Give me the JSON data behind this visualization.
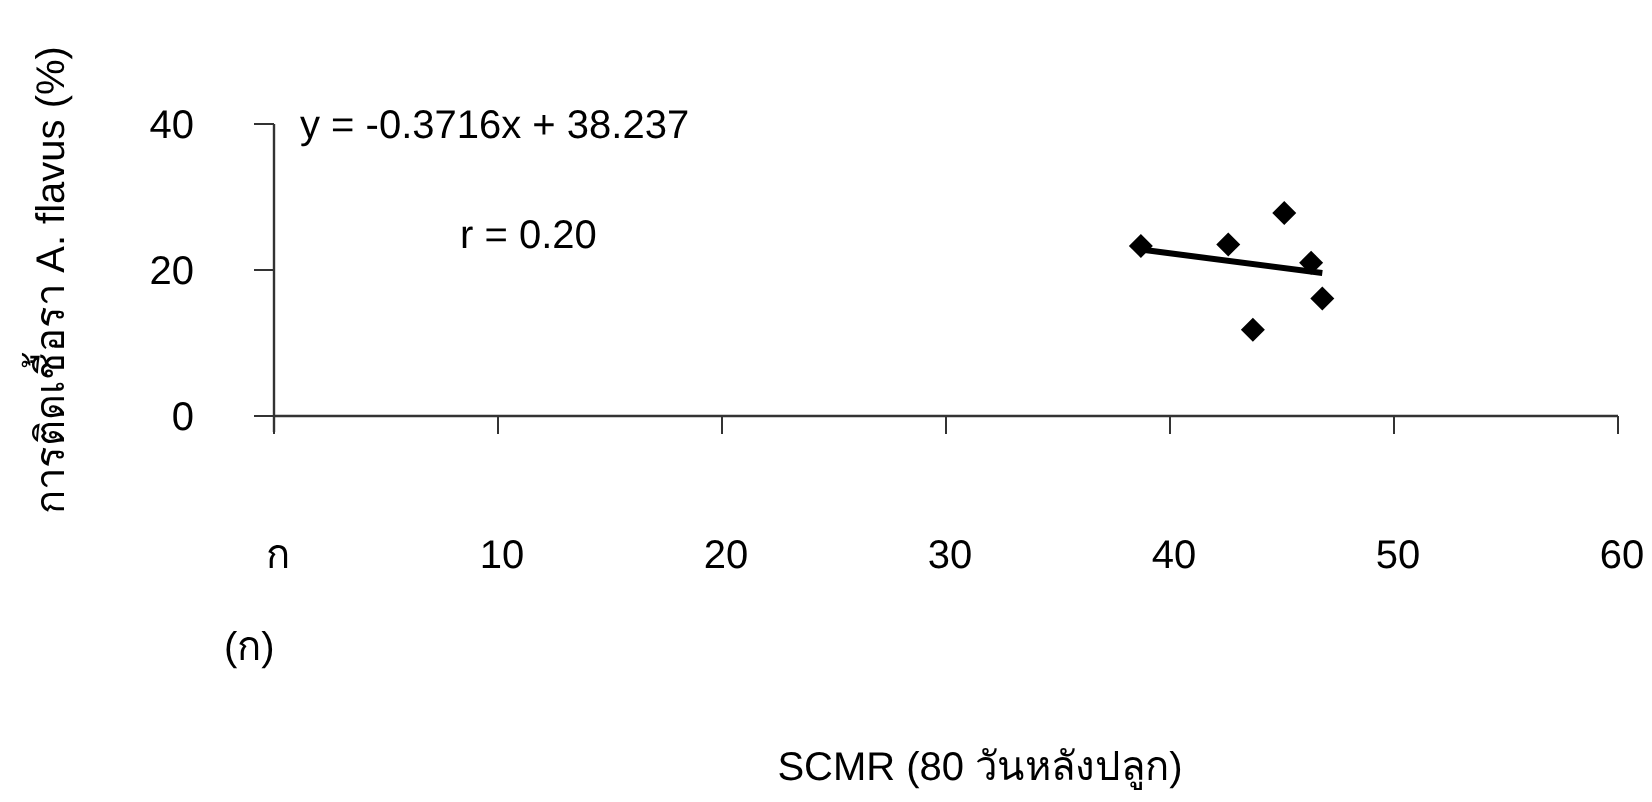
{
  "chart_data": {
    "type": "scatter",
    "xlabel": "SCMR (80 วันหลังปลูก)",
    "ylabel": "การติดเชื้อรา A. flavus (%)",
    "xlim": [
      0,
      60
    ],
    "xticks": [
      {
        "value": 0,
        "label": "ก"
      },
      10,
      20,
      30,
      40,
      50,
      60
    ],
    "ylim": [
      0,
      40
    ],
    "yticks": [
      0,
      20,
      40
    ],
    "annotations": [
      "y = -0.3716x + 38.237",
      "r = 0.20",
      "(ก)"
    ],
    "grid": false,
    "series": [
      {
        "marker": "diamond",
        "color": "#000000",
        "x": [
          38.7,
          42.6,
          45.1,
          46.3,
          46.8,
          43.7
        ],
        "values": [
          23.3,
          23.5,
          27.8,
          21.0,
          16.1,
          11.8
        ]
      },
      {
        "type": "line",
        "color": "#000000",
        "x": [
          38.7,
          46.8
        ],
        "values": [
          22.8,
          19.6
        ]
      }
    ]
  }
}
